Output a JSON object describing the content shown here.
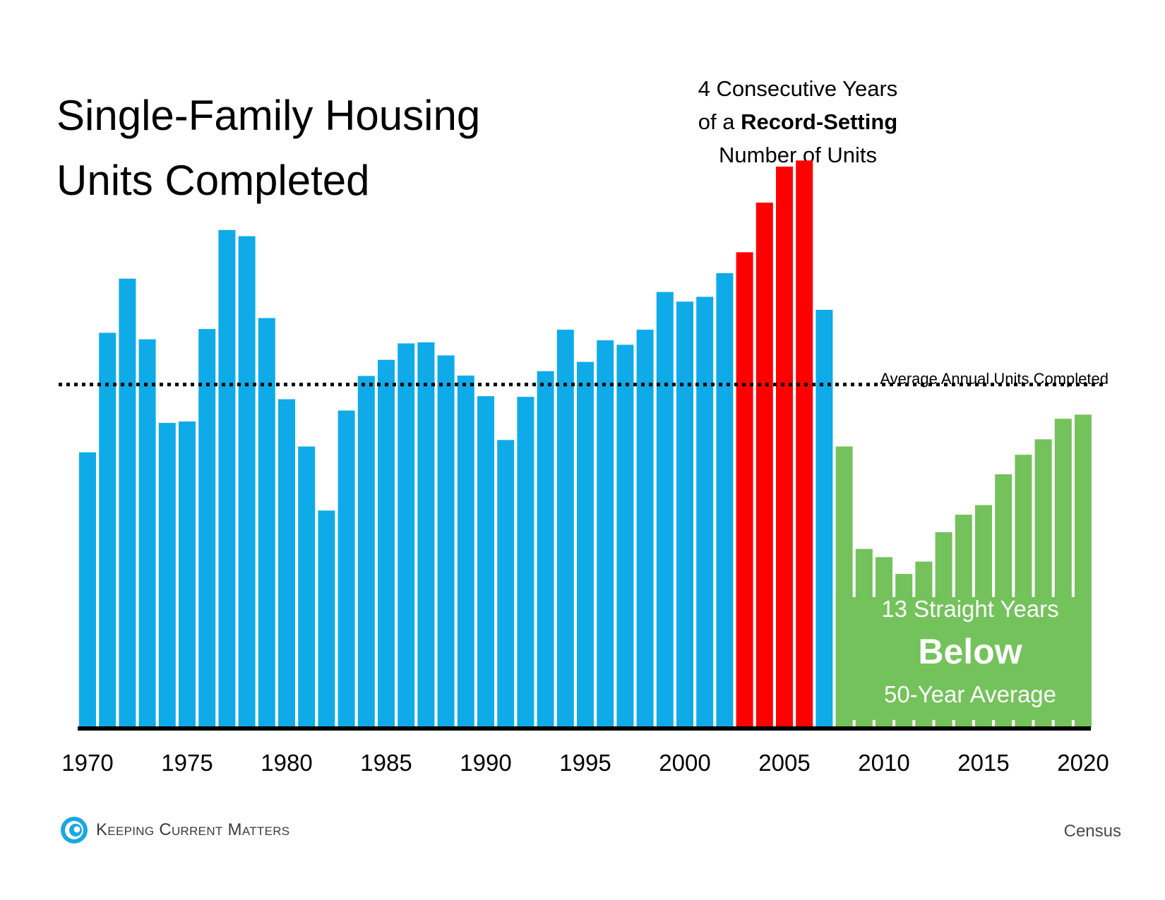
{
  "title_line1": "Single-Family Housing",
  "title_line2": "Units Completed",
  "annotation_top": {
    "line1": "4 Consecutive Years",
    "line2_prefix": "of a ",
    "line2_bold": "Record-Setting",
    "line3": "Number of Units"
  },
  "average_label": "Average Annual Units Completed",
  "below_box": {
    "line1": "13 Straight Years",
    "line2": "Below",
    "line3": "50-Year Average"
  },
  "logo_text": "Keeping Current Matters",
  "source": "Census",
  "colors": {
    "normal": "#0fabe9",
    "record": "#ff0000",
    "below": "#74c25b",
    "axis": "#000000"
  },
  "chart_data": {
    "type": "bar",
    "title": "Single-Family Housing Units Completed",
    "xlabel": "",
    "ylabel": "",
    "tick_labels": [
      "1970",
      "1975",
      "1980",
      "1985",
      "1990",
      "1995",
      "2000",
      "2005",
      "2010",
      "2015",
      "2020"
    ],
    "categories": [
      1970,
      1971,
      1972,
      1973,
      1974,
      1975,
      1976,
      1977,
      1978,
      1979,
      1980,
      1981,
      1982,
      1983,
      1984,
      1985,
      1986,
      1987,
      1988,
      1989,
      1990,
      1991,
      1992,
      1993,
      1994,
      1995,
      1996,
      1997,
      1998,
      1999,
      2000,
      2001,
      2002,
      2003,
      2004,
      2005,
      2006,
      2007,
      2008,
      2009,
      2010,
      2011,
      2012,
      2013,
      2014,
      2015,
      2016,
      2017,
      2018,
      2019,
      2020
    ],
    "values": [
      802,
      1151,
      1309,
      1132,
      888,
      892,
      1162,
      1451,
      1433,
      1194,
      957,
      819,
      632,
      924,
      1025,
      1072,
      1120,
      1123,
      1085,
      1026,
      966,
      838,
      964,
      1039,
      1160,
      1066,
      1129,
      1116,
      1160,
      1270,
      1242,
      1256,
      1325,
      1386,
      1531,
      1636,
      1654,
      1218,
      819,
      520,
      496,
      447,
      483,
      569,
      620,
      648,
      738,
      795,
      840,
      900,
      912
    ],
    "groups": [
      "normal",
      "normal",
      "normal",
      "normal",
      "normal",
      "normal",
      "normal",
      "normal",
      "normal",
      "normal",
      "normal",
      "normal",
      "normal",
      "normal",
      "normal",
      "normal",
      "normal",
      "normal",
      "normal",
      "normal",
      "normal",
      "normal",
      "normal",
      "normal",
      "normal",
      "normal",
      "normal",
      "normal",
      "normal",
      "normal",
      "normal",
      "normal",
      "normal",
      "record",
      "record",
      "record",
      "record",
      "normal",
      "below",
      "below",
      "below",
      "below",
      "below",
      "below",
      "below",
      "below",
      "below",
      "below",
      "below",
      "below",
      "below"
    ],
    "reference_line": {
      "label": "Average Annual Units Completed",
      "value": 1000,
      "style": "dotted"
    },
    "ylim": [
      0,
      1700
    ],
    "grid": false,
    "legend": "none"
  }
}
